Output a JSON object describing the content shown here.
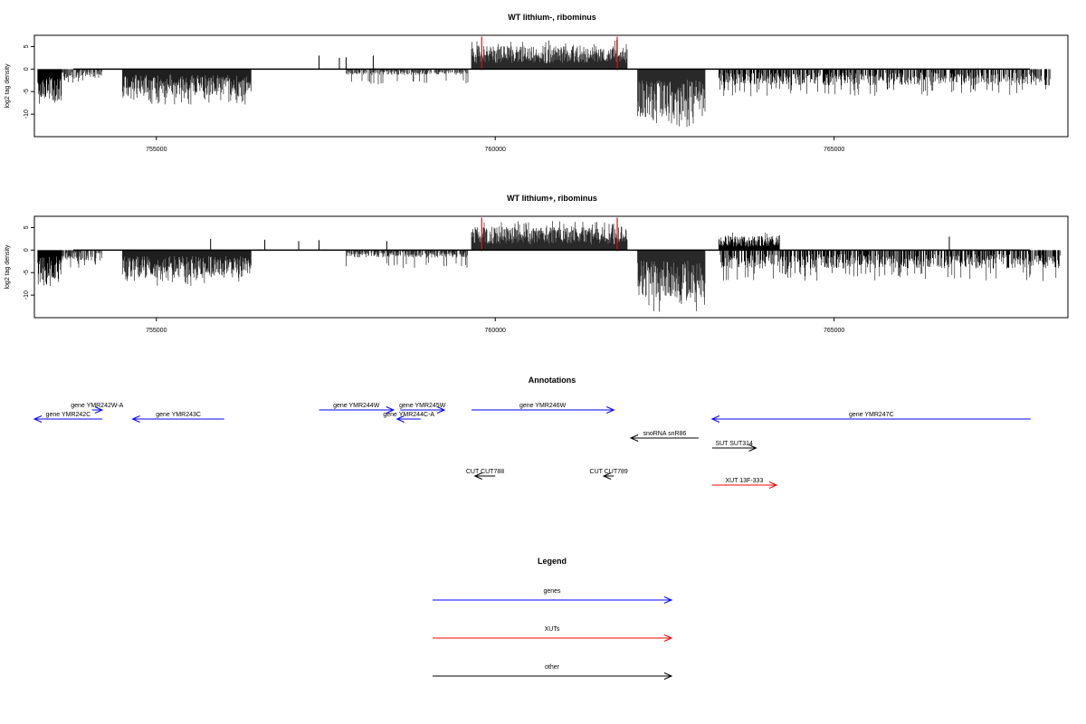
{
  "chart_data": [
    {
      "type": "bar",
      "title": "WT lithium-, ribominus",
      "ylabel": "log2 tag density",
      "xlabel": "",
      "xlim": [
        753200,
        768450
      ],
      "ylim": [
        -15,
        7.5
      ],
      "x_ticks": [
        755000,
        760000,
        765000
      ],
      "x_tick_labels": [
        "755000",
        "760000",
        "765000"
      ],
      "y_ticks": [
        -10,
        -5,
        0,
        5
      ],
      "y_tick_labels": [
        "-10",
        "-5",
        "0",
        "5"
      ],
      "baseline": 0,
      "colors": {
        "bars": "#000000",
        "markers": "#ff0000"
      },
      "marker_x": [
        759800,
        761800
      ],
      "profile": {
        "positive_regions": [
          {
            "start": 759650,
            "end": 761950,
            "mean": 3.2,
            "max": 6.5
          }
        ],
        "negative_regions": [
          {
            "start": 753250,
            "end": 753600,
            "mean": -4.5,
            "max": -8
          },
          {
            "start": 753600,
            "end": 754200,
            "mean": -1.2,
            "max": -3
          },
          {
            "start": 754500,
            "end": 756400,
            "mean": -3.5,
            "max": -8
          },
          {
            "start": 757800,
            "end": 759600,
            "mean": -0.8,
            "max": -3.5
          },
          {
            "start": 762100,
            "end": 763100,
            "mean": -6.5,
            "max": -13
          },
          {
            "start": 763300,
            "end": 768200,
            "mean": -2.2,
            "max": -6
          }
        ],
        "spikes": [
          [
            757400,
            3
          ],
          [
            757700,
            2.5
          ],
          [
            757800,
            2.6
          ],
          [
            758200,
            3
          ]
        ]
      }
    },
    {
      "type": "bar",
      "title": "WT lithium+, ribominus",
      "ylabel": "log2 tag density",
      "xlabel": "",
      "xlim": [
        753200,
        768450
      ],
      "ylim": [
        -15,
        7.5
      ],
      "x_ticks": [
        755000,
        760000,
        765000
      ],
      "x_tick_labels": [
        "755000",
        "760000",
        "765000"
      ],
      "y_ticks": [
        -10,
        -5,
        0,
        5
      ],
      "y_tick_labels": [
        "-10",
        "-5",
        "0",
        "5"
      ],
      "baseline": 0,
      "colors": {
        "bars": "#000000",
        "markers": "#ff0000"
      },
      "marker_x": [
        759800,
        761800
      ],
      "profile": {
        "positive_regions": [
          {
            "start": 759650,
            "end": 761950,
            "mean": 3.2,
            "max": 6.5
          },
          {
            "start": 763300,
            "end": 764200,
            "mean": 2.0,
            "max": 4.2
          }
        ],
        "negative_regions": [
          {
            "start": 753250,
            "end": 753600,
            "mean": -4.0,
            "max": -8
          },
          {
            "start": 753600,
            "end": 754200,
            "mean": -1.5,
            "max": -4
          },
          {
            "start": 754500,
            "end": 756400,
            "mean": -3.8,
            "max": -8
          },
          {
            "start": 757800,
            "end": 759600,
            "mean": -1.0,
            "max": -4
          },
          {
            "start": 762100,
            "end": 763100,
            "mean": -6.5,
            "max": -14
          },
          {
            "start": 763300,
            "end": 768350,
            "mean": -2.5,
            "max": -7
          }
        ],
        "spikes": [
          [
            755800,
            2.5
          ],
          [
            756600,
            2.3
          ],
          [
            757100,
            2
          ],
          [
            757400,
            2.2
          ],
          [
            758400,
            2
          ],
          [
            766700,
            3
          ]
        ]
      }
    }
  ],
  "annotations": {
    "title": "Annotations",
    "xlim": [
      753200,
      768450
    ],
    "items": [
      {
        "label": "gene YMR242W-A",
        "start": 754050,
        "end": 754200,
        "dir": "right",
        "row": 0,
        "color": "#0000ff"
      },
      {
        "label": "gene YMR242C",
        "start": 753200,
        "end": 754200,
        "dir": "left",
        "row": 1,
        "color": "#0000ff"
      },
      {
        "label": "gene YMR243C",
        "start": 754650,
        "end": 756000,
        "dir": "left",
        "row": 1,
        "color": "#0000ff"
      },
      {
        "label": "gene YMR244W",
        "start": 757400,
        "end": 758500,
        "dir": "right",
        "row": 0,
        "color": "#0000ff"
      },
      {
        "label": "gene YMR245W",
        "start": 758600,
        "end": 759250,
        "dir": "right",
        "row": 0,
        "color": "#0000ff"
      },
      {
        "label": "gene YMR244C-A",
        "start": 758550,
        "end": 758900,
        "dir": "left",
        "row": 1,
        "color": "#0000ff"
      },
      {
        "label": "gene YMR246W",
        "start": 759650,
        "end": 761750,
        "dir": "right",
        "row": 0,
        "color": "#0000ff"
      },
      {
        "label": "gene YMR247C",
        "start": 763200,
        "end": 767900,
        "dir": "left",
        "row": 1,
        "color": "#0000ff"
      },
      {
        "label": "snoRNA snR86",
        "start": 762000,
        "end": 763000,
        "dir": "left",
        "row": 2,
        "color": "#000000"
      },
      {
        "label": "SUT SUT314",
        "start": 763200,
        "end": 763850,
        "dir": "right",
        "row": 3,
        "color": "#000000"
      },
      {
        "label": "CUT CUT788",
        "start": 759700,
        "end": 760000,
        "dir": "left",
        "row": 4,
        "color": "#000000"
      },
      {
        "label": "CUT CUT789",
        "start": 761600,
        "end": 761750,
        "dir": "left",
        "row": 4,
        "color": "#000000"
      },
      {
        "label": "XUT 13F-333",
        "start": 763200,
        "end": 764150,
        "dir": "right",
        "row": 5,
        "color": "#ff0000"
      }
    ]
  },
  "legend": {
    "title": "Legend",
    "items": [
      {
        "label": "genes",
        "color": "#0000ff"
      },
      {
        "label": "XUTs",
        "color": "#ff0000"
      },
      {
        "label": "other",
        "color": "#000000"
      }
    ]
  }
}
